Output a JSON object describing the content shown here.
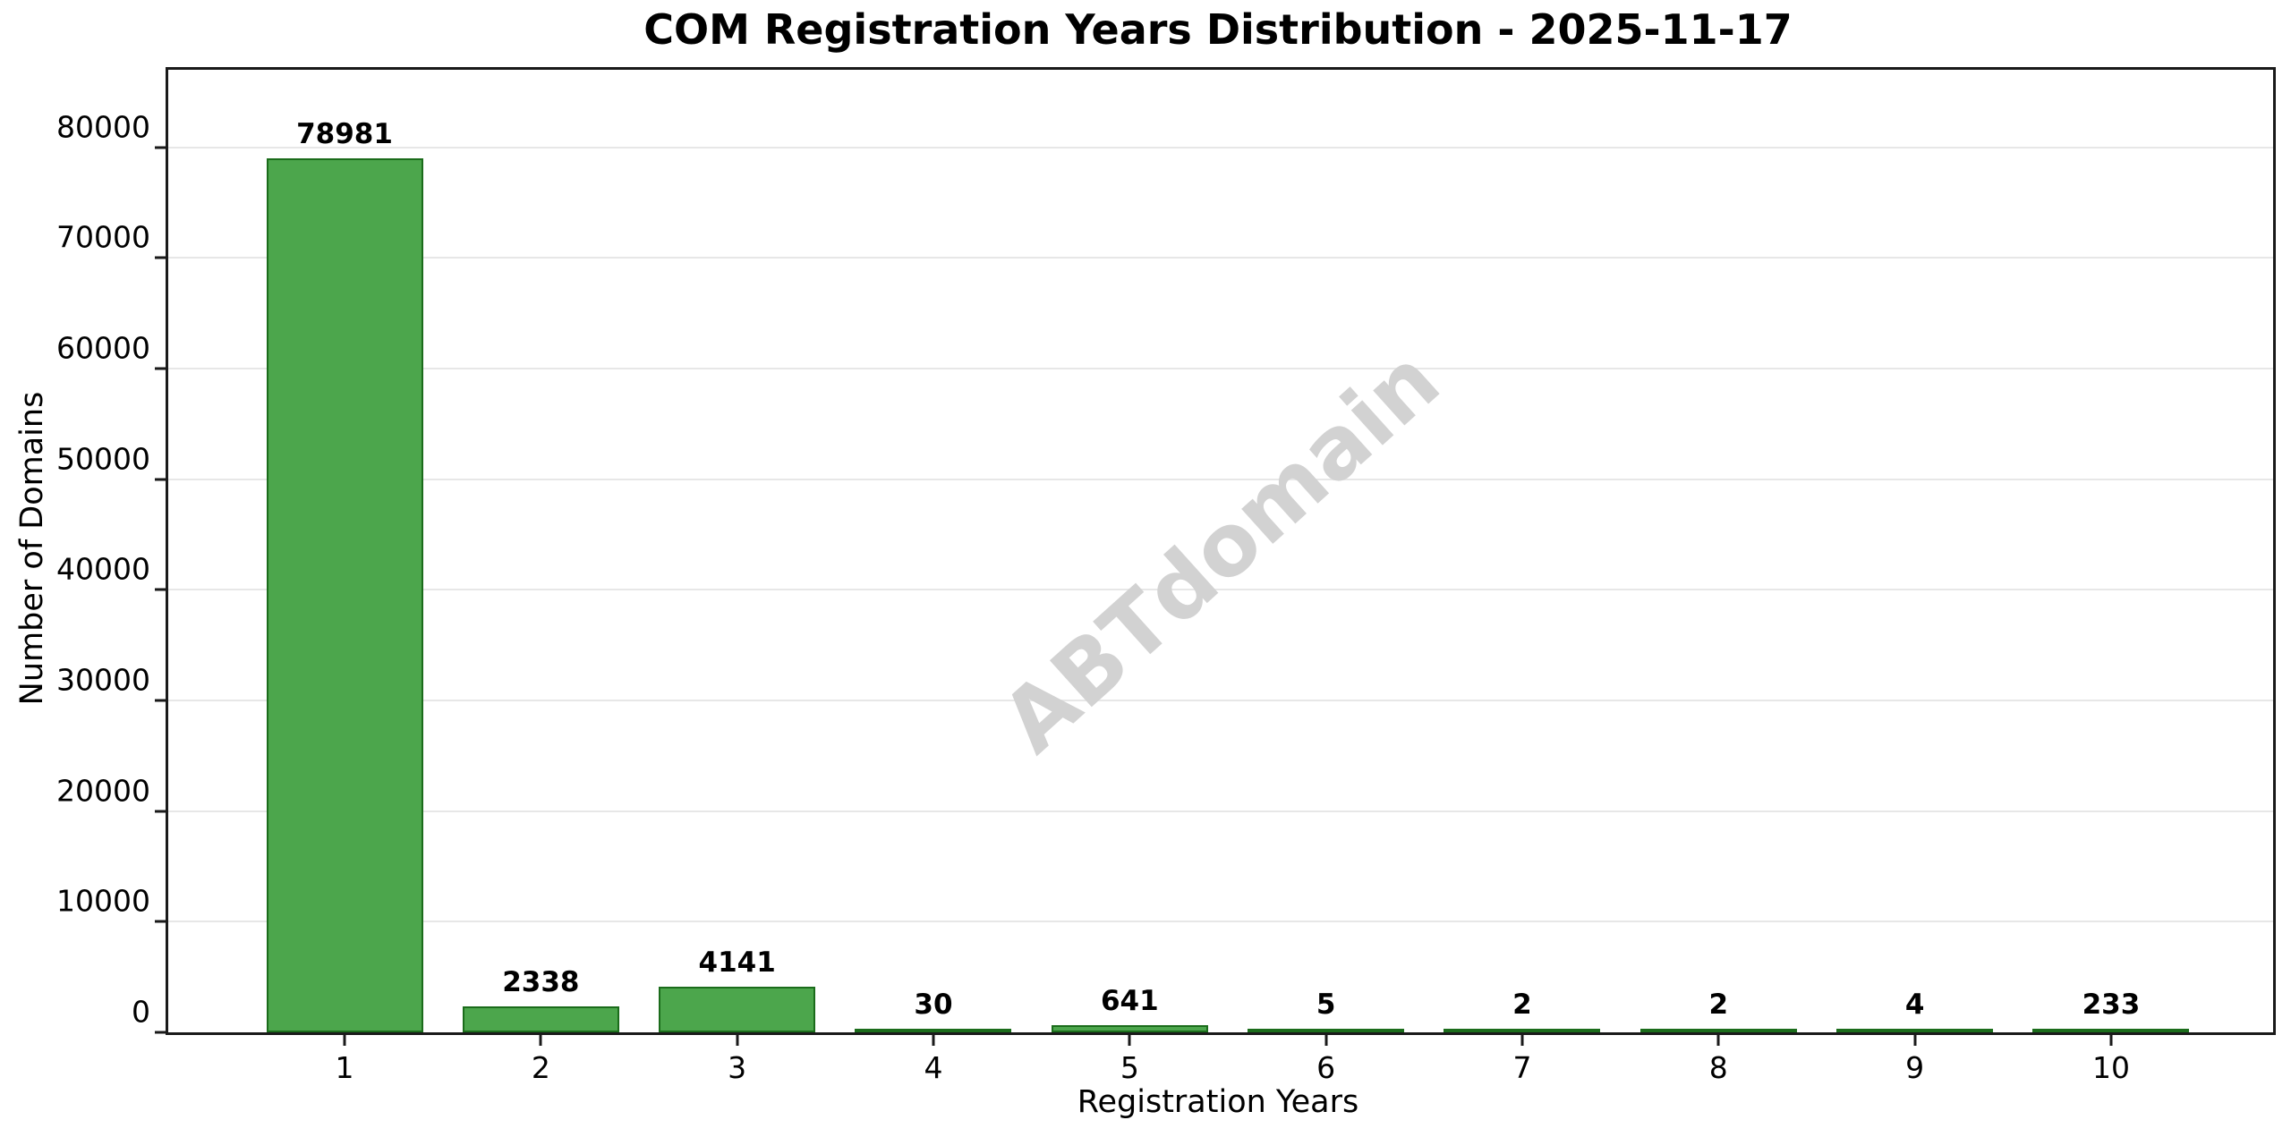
{
  "title": "COM Registration Years Distribution - 2025-11-17",
  "chart_data": {
    "type": "bar",
    "title": "COM Registration Years Distribution - 2025-11-17",
    "xlabel": "Registration Years",
    "ylabel": "Number of Domains",
    "categories": [
      "1",
      "2",
      "3",
      "4",
      "5",
      "6",
      "7",
      "8",
      "9",
      "10"
    ],
    "values": [
      78981,
      2338,
      4141,
      30,
      641,
      5,
      2,
      2,
      4,
      233
    ],
    "bar_labels": [
      "78981",
      "2338",
      "4141",
      "30",
      "641",
      "5",
      "2",
      "2",
      "4",
      "233"
    ],
    "ylim": [
      0,
      87000
    ],
    "yticks": [
      0,
      10000,
      20000,
      30000,
      40000,
      50000,
      60000,
      70000,
      80000
    ],
    "ytick_labels": [
      "0",
      "10000",
      "20000",
      "30000",
      "40000",
      "50000",
      "60000",
      "70000",
      "80000"
    ],
    "grid": "horizontal-only",
    "legend": "none",
    "watermark": "ABTdomain",
    "colors": {
      "bar_fill": "#4ca64c",
      "bar_edge": "#1b6c1b",
      "grid_line": "#e7e7e7",
      "spine": "#1a1a1a",
      "tick_text": "#000000",
      "watermark": "#d2d2d2",
      "background": "#ffffff"
    }
  }
}
